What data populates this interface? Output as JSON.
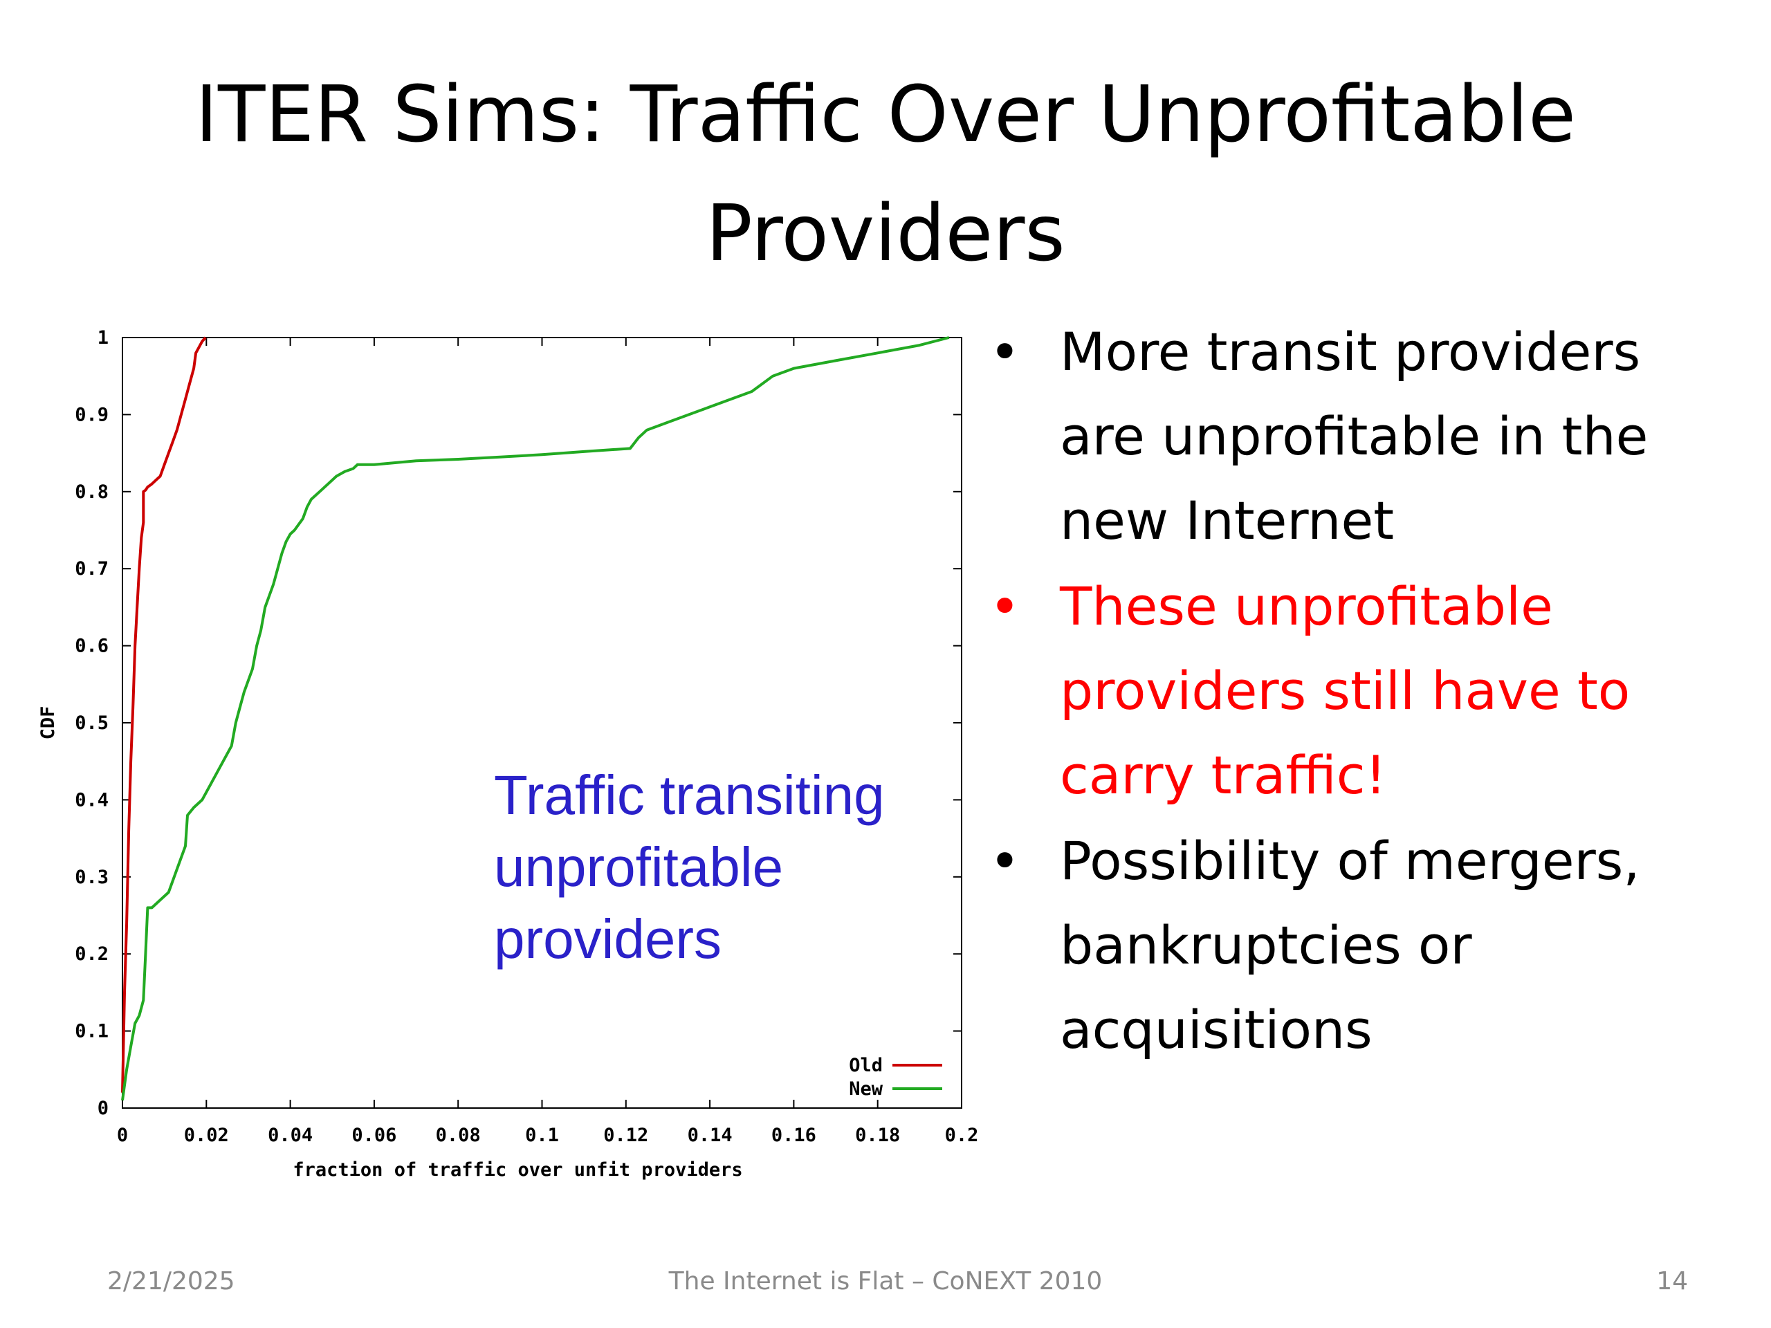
{
  "slide": {
    "title_lines": [
      "ITER Sims: Traffic Over Unprofitable",
      "Providers"
    ],
    "annotation_lines": [
      "Traffic transiting",
      "unprofitable",
      "providers"
    ],
    "bullets": [
      {
        "lines": [
          "More transit providers",
          "are unprofitable in the",
          "new Internet"
        ],
        "color": "#000000",
        "mark": "•"
      },
      {
        "lines": [
          "These unprofitable",
          "providers still have to",
          "carry traffic!"
        ],
        "color": "#ff0000",
        "mark": "•"
      },
      {
        "lines": [
          "Possibility of mergers,",
          "bankruptcies or",
          "acquisitions"
        ],
        "color": "#000000",
        "mark": "•"
      }
    ],
    "footer": {
      "date": "2/21/2025",
      "center": "The Internet is Flat – CoNEXT 2010",
      "page": "14"
    }
  },
  "chart_data": {
    "type": "line",
    "title": "",
    "xlabel": "fraction of traffic over unfit providers",
    "ylabel": "CDF",
    "xlim": [
      0,
      0.2
    ],
    "ylim": [
      0,
      1
    ],
    "xticks": [
      0,
      0.02,
      0.04,
      0.06,
      0.08,
      0.1,
      0.12,
      0.14,
      0.16,
      0.18,
      0.2
    ],
    "xtick_labels": [
      "0",
      "0.02",
      "0.04",
      "0.06",
      "0.08",
      "0.1",
      "0.12",
      "0.14",
      "0.16",
      "0.18",
      "0.2"
    ],
    "yticks": [
      0,
      0.1,
      0.2,
      0.3,
      0.4,
      0.5,
      0.6,
      0.7,
      0.8,
      0.9,
      1
    ],
    "ytick_labels": [
      "0",
      "0.1",
      "0.2",
      "0.3",
      "0.4",
      "0.5",
      "0.6",
      "0.7",
      "0.8",
      "0.9",
      "1"
    ],
    "grid": false,
    "legend_position": "bottom-right",
    "series": [
      {
        "name": "Old",
        "color": "#cc0000",
        "x": [
          0,
          0.0005,
          0.001,
          0.0015,
          0.002,
          0.0025,
          0.003,
          0.0035,
          0.004,
          0.0045,
          0.005,
          0.005,
          0.0055,
          0.006,
          0.007,
          0.008,
          0.009,
          0.01,
          0.011,
          0.012,
          0.013,
          0.014,
          0.015,
          0.016,
          0.017,
          0.0175,
          0.018,
          0.019,
          0.0198
        ],
        "y": [
          0.02,
          0.15,
          0.24,
          0.36,
          0.45,
          0.52,
          0.6,
          0.65,
          0.7,
          0.74,
          0.76,
          0.8,
          0.802,
          0.806,
          0.81,
          0.815,
          0.82,
          0.835,
          0.85,
          0.865,
          0.88,
          0.9,
          0.92,
          0.94,
          0.96,
          0.98,
          0.985,
          0.995,
          1.0
        ]
      },
      {
        "name": "New",
        "color": "#22aa22",
        "x": [
          0,
          0.001,
          0.002,
          0.003,
          0.004,
          0.005,
          0.0055,
          0.006,
          0.007,
          0.009,
          0.011,
          0.013,
          0.015,
          0.0155,
          0.017,
          0.019,
          0.021,
          0.023,
          0.025,
          0.026,
          0.027,
          0.028,
          0.029,
          0.031,
          0.032,
          0.033,
          0.034,
          0.036,
          0.037,
          0.038,
          0.039,
          0.04,
          0.041,
          0.043,
          0.044,
          0.045,
          0.047,
          0.049,
          0.051,
          0.053,
          0.055,
          0.056,
          0.06,
          0.07,
          0.08,
          0.09,
          0.1,
          0.11,
          0.121,
          0.123,
          0.125,
          0.13,
          0.135,
          0.14,
          0.15,
          0.155,
          0.16,
          0.17,
          0.18,
          0.19,
          0.197
        ],
        "y": [
          0.01,
          0.05,
          0.08,
          0.11,
          0.12,
          0.14,
          0.2,
          0.26,
          0.26,
          0.27,
          0.28,
          0.31,
          0.34,
          0.38,
          0.39,
          0.4,
          0.42,
          0.44,
          0.46,
          0.47,
          0.5,
          0.52,
          0.54,
          0.57,
          0.6,
          0.62,
          0.65,
          0.68,
          0.7,
          0.72,
          0.735,
          0.745,
          0.75,
          0.765,
          0.78,
          0.79,
          0.8,
          0.81,
          0.82,
          0.826,
          0.83,
          0.835,
          0.835,
          0.84,
          0.842,
          0.845,
          0.848,
          0.852,
          0.856,
          0.87,
          0.88,
          0.89,
          0.9,
          0.91,
          0.93,
          0.95,
          0.96,
          0.97,
          0.98,
          0.99,
          1.0
        ]
      }
    ]
  }
}
